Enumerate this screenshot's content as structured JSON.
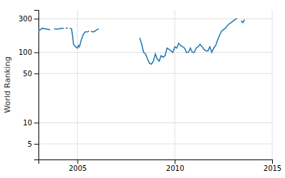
{
  "chart_data": {
    "type": "line",
    "ylabel": "World Ranking",
    "x": [
      2003.0,
      2003.2,
      2003.4,
      2003.6,
      null,
      2003.8,
      2004.0,
      2004.2,
      2004.3,
      null,
      2004.4,
      2004.5,
      null,
      2004.6,
      2004.7,
      2004.75,
      2004.8,
      2004.9,
      2005.0,
      2005.05,
      2005.1,
      2005.2,
      2005.3,
      2005.4,
      2005.5,
      2005.6,
      null,
      2005.7,
      2005.8,
      2005.9,
      2006.0,
      2006.1,
      null,
      2008.2,
      2008.3,
      2008.4,
      2008.5,
      2008.6,
      2008.7,
      2008.8,
      2008.9,
      2009.0,
      2009.1,
      2009.2,
      2009.3,
      2009.4,
      2009.5,
      2009.6,
      2009.7,
      2009.8,
      2009.9,
      2010.0,
      2010.1,
      2010.2,
      2010.3,
      2010.4,
      2010.5,
      2010.6,
      2010.7,
      2010.8,
      2010.9,
      2011.0,
      2011.1,
      2011.2,
      2011.3,
      2011.4,
      2011.5,
      2011.6,
      2011.7,
      2011.8,
      2011.9,
      2012.0,
      2012.1,
      2012.2,
      2012.3,
      2012.4,
      2012.5,
      2012.6,
      2012.7,
      2012.8,
      2012.9,
      2013.0,
      2013.1,
      2013.2,
      null,
      2013.4,
      2013.5,
      2013.55,
      2013.6
    ],
    "values": [
      200,
      220,
      215,
      210,
      null,
      215,
      215,
      220,
      220,
      null,
      220,
      222,
      null,
      220,
      215,
      170,
      130,
      120,
      115,
      125,
      120,
      150,
      180,
      195,
      195,
      200,
      null,
      200,
      195,
      200,
      210,
      215,
      null,
      160,
      130,
      100,
      95,
      80,
      70,
      68,
      75,
      95,
      80,
      75,
      90,
      85,
      90,
      115,
      110,
      105,
      100,
      120,
      115,
      135,
      125,
      120,
      115,
      100,
      100,
      115,
      100,
      100,
      115,
      120,
      130,
      120,
      110,
      105,
      105,
      120,
      100,
      115,
      125,
      150,
      175,
      200,
      210,
      220,
      240,
      255,
      265,
      280,
      295,
      300,
      null,
      280,
      265,
      285,
      290
    ],
    "xlim": [
      2003,
      2015
    ],
    "xticks": [
      2005,
      2010,
      2015
    ],
    "ylim": [
      3,
      400
    ],
    "yticks": [
      5,
      10,
      50,
      100,
      300
    ],
    "log": "y",
    "grid": true
  }
}
